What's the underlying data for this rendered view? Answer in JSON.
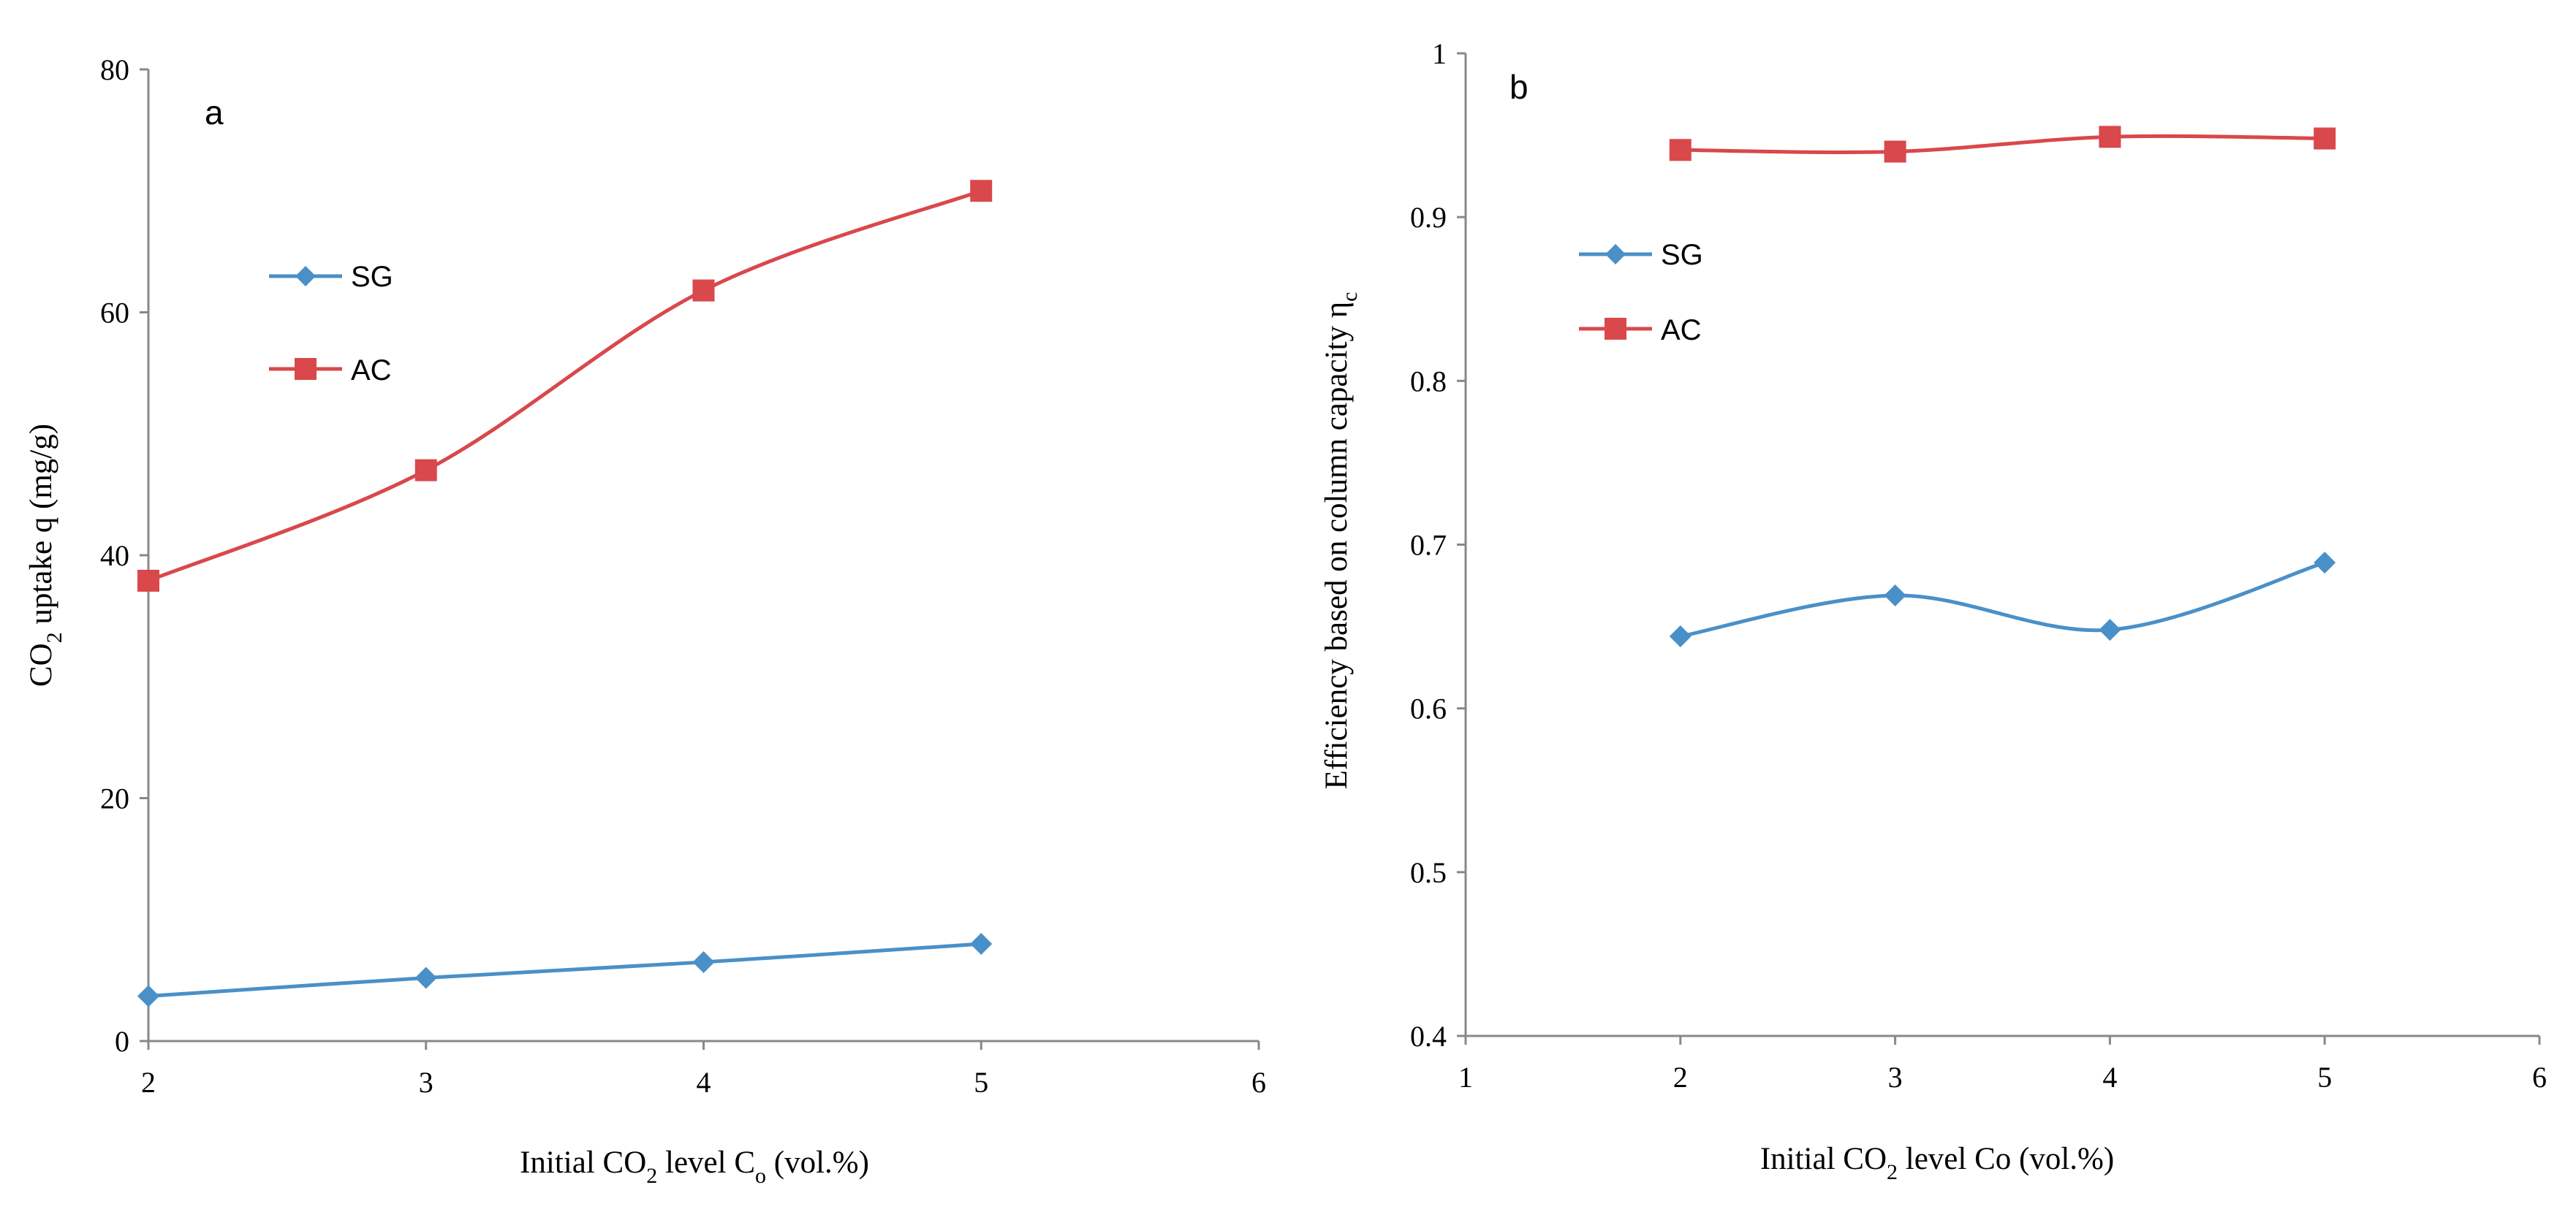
{
  "chart_data": [
    {
      "type": "line",
      "panel_label": "a",
      "x": [
        2,
        3,
        4,
        5
      ],
      "series": [
        {
          "name": "SG",
          "color": "#4a90c8",
          "marker": "diamond",
          "values": [
            3.7,
            5.2,
            6.5,
            8.0
          ]
        },
        {
          "name": "AC",
          "color": "#d9484b",
          "marker": "square",
          "values": [
            37.9,
            47.0,
            61.8,
            70.0
          ]
        }
      ],
      "xlim": [
        2,
        6
      ],
      "ylim": [
        0,
        80
      ],
      "xticks": [
        "2",
        "3",
        "4",
        "5",
        "6"
      ],
      "yticks": [
        "0",
        "20",
        "40",
        "60",
        "80"
      ],
      "xlabel": {
        "pre": "Initial CO",
        "sub": "2",
        "mid": " level C",
        "sub2": "o",
        "post": " (vol.%)"
      },
      "ylabel": {
        "pre": "CO",
        "sub": "2",
        "post": " uptake q (mg/g)"
      },
      "legend": "upper-left",
      "smooth": true,
      "grid": false
    },
    {
      "type": "line",
      "panel_label": "b",
      "x": [
        2,
        3,
        4,
        5
      ],
      "series": [
        {
          "name": "SG",
          "color": "#4a90c8",
          "marker": "diamond",
          "values": [
            0.644,
            0.669,
            0.648,
            0.689
          ]
        },
        {
          "name": "AC",
          "color": "#d9484b",
          "marker": "square",
          "values": [
            0.941,
            0.94,
            0.949,
            0.948
          ]
        }
      ],
      "xlim": [
        1,
        6
      ],
      "ylim": [
        0.4,
        1
      ],
      "xticks": [
        "1",
        "2",
        "3",
        "4",
        "5",
        "6"
      ],
      "yticks": [
        "0.4",
        "0.5",
        "0.6",
        "0.7",
        "0.8",
        "0.9",
        "1"
      ],
      "xlabel": {
        "pre": "Initial CO",
        "sub": "2",
        "post": " level Co (vol.%)"
      },
      "ylabel": {
        "pre": "Efficiency based on column capacity η",
        "sub": "c"
      },
      "legend": "upper-left",
      "smooth": true,
      "grid": false
    }
  ]
}
